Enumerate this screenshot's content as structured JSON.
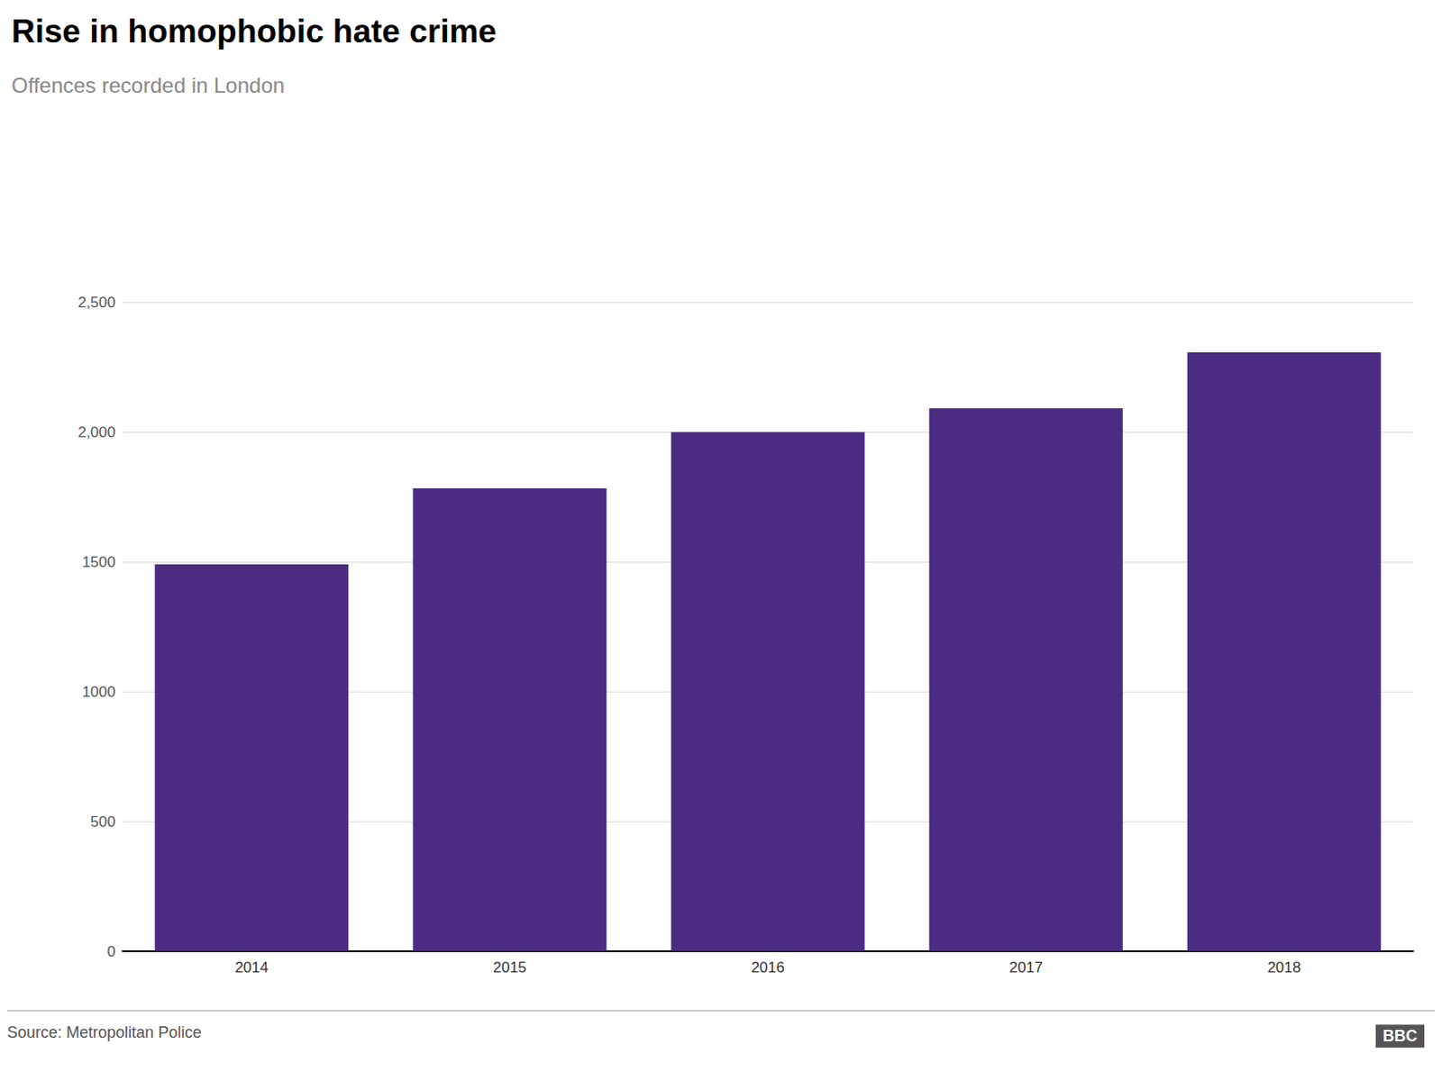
{
  "chart_data": {
    "type": "bar",
    "title": "Rise in homophobic hate crime",
    "subtitle": "Offences recorded in London",
    "categories": [
      "2014",
      "2015",
      "2016",
      "2017",
      "2018"
    ],
    "values": [
      1491,
      1784,
      2001,
      2093,
      2308
    ],
    "color": "#4B2C82",
    "ylim": [
      0,
      2500
    ],
    "yticks": [
      0,
      500,
      1000,
      1500,
      {
        "value": 2000,
        "label": "2,000"
      },
      {
        "value": 2500,
        "label": "2,500"
      }
    ],
    "grid": true,
    "annotations": [
      "Source: Metropolitan Police",
      "BBC"
    ]
  }
}
